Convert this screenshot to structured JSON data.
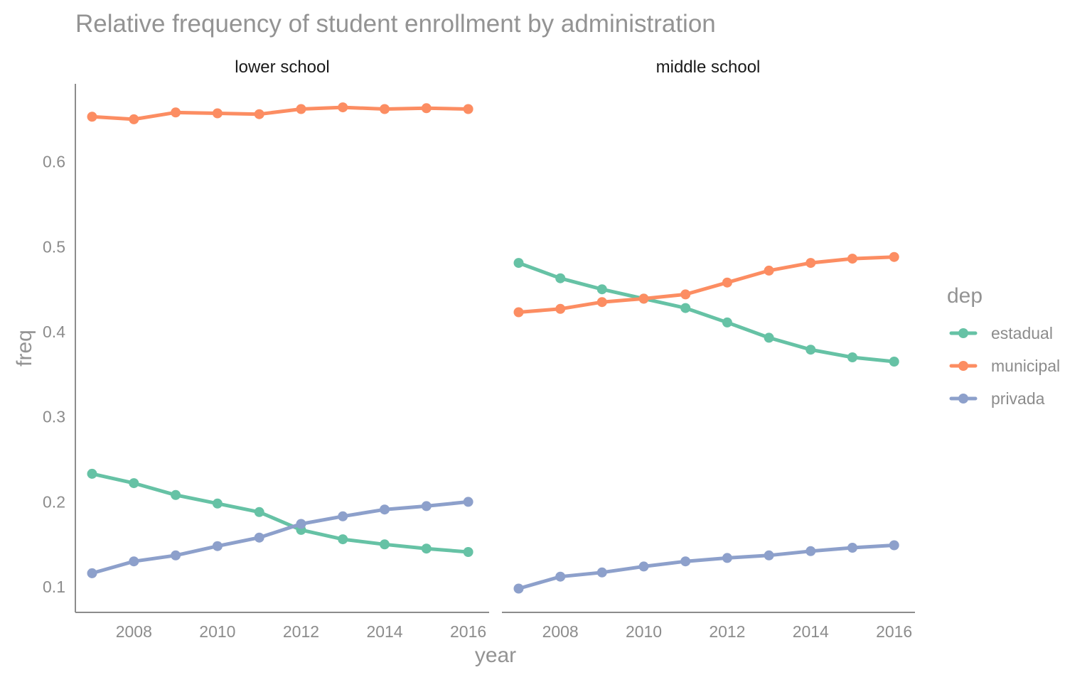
{
  "chart_data": {
    "type": "line",
    "title": "Relative frequency of student enrollment by administration",
    "xlabel": "year",
    "ylabel": "freq",
    "x": [
      2007,
      2008,
      2009,
      2010,
      2011,
      2012,
      2013,
      2014,
      2015,
      2016
    ],
    "xticks": [
      2008,
      2010,
      2012,
      2014,
      2016
    ],
    "yticks": [
      0.1,
      0.2,
      0.3,
      0.4,
      0.5,
      0.6
    ],
    "ylim": [
      0.07,
      0.69
    ],
    "xlim": [
      2006.6,
      2016.5
    ],
    "grid": false,
    "legend": {
      "title": "dep",
      "position": "right",
      "entries": [
        {
          "name": "estadual",
          "color": "#66c2a5"
        },
        {
          "name": "municipal",
          "color": "#fc8d62"
        },
        {
          "name": "privada",
          "color": "#8da0cb"
        }
      ]
    },
    "panels": [
      {
        "label": "lower school",
        "series": [
          {
            "name": "estadual",
            "values": [
              0.233,
              0.222,
              0.208,
              0.198,
              0.188,
              0.167,
              0.156,
              0.15,
              0.145,
              0.141
            ]
          },
          {
            "name": "municipal",
            "values": [
              0.653,
              0.65,
              0.658,
              0.657,
              0.656,
              0.662,
              0.664,
              0.662,
              0.663,
              0.662
            ]
          },
          {
            "name": "privada",
            "values": [
              0.116,
              0.13,
              0.137,
              0.148,
              0.158,
              0.174,
              0.183,
              0.191,
              0.195,
              0.2
            ]
          }
        ]
      },
      {
        "label": "middle school",
        "series": [
          {
            "name": "estadual",
            "values": [
              0.481,
              0.463,
              0.45,
              0.439,
              0.428,
              0.411,
              0.393,
              0.379,
              0.37,
              0.365
            ]
          },
          {
            "name": "municipal",
            "values": [
              0.423,
              0.427,
              0.435,
              0.439,
              0.444,
              0.458,
              0.472,
              0.481,
              0.486,
              0.488
            ]
          },
          {
            "name": "privada",
            "values": [
              0.098,
              0.112,
              0.117,
              0.124,
              0.13,
              0.134,
              0.137,
              0.142,
              0.146,
              0.149
            ]
          }
        ]
      }
    ]
  }
}
